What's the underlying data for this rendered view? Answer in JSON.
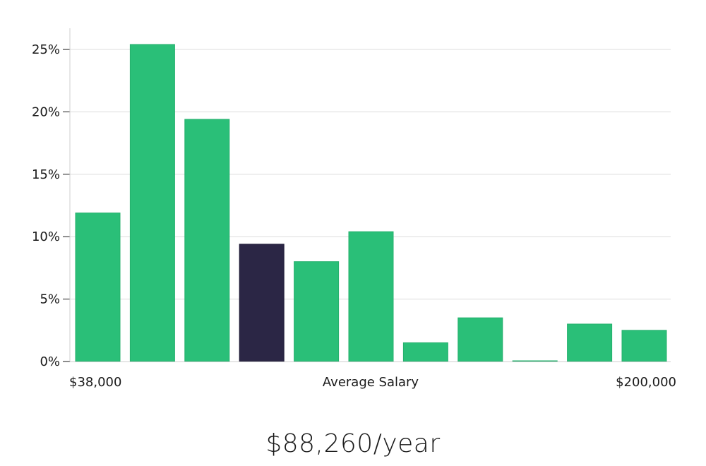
{
  "colors": {
    "bar": "#2abf78",
    "highlight": "#2b2645",
    "grid": "#dcdcdc",
    "axis": "#cfcfcf",
    "text": "#1a1a1a"
  },
  "chart_data": {
    "type": "bar",
    "title": "",
    "xlabel": "Average Salary",
    "ylabel": "",
    "x_start_label": "$38,000",
    "x_end_label": "$200,000",
    "y_tick_labels": [
      "0%",
      "5%",
      "10%",
      "15%",
      "20%",
      "25%"
    ],
    "y_ticks": [
      0,
      5,
      10,
      15,
      20,
      25
    ],
    "ylim": [
      0,
      26.7
    ],
    "values": [
      11.9,
      25.4,
      19.4,
      9.4,
      8.0,
      10.4,
      1.5,
      3.5,
      0.05,
      3.0,
      2.5
    ],
    "highlight_index": 3,
    "grid": true
  },
  "salary_text": "$88,260/year"
}
